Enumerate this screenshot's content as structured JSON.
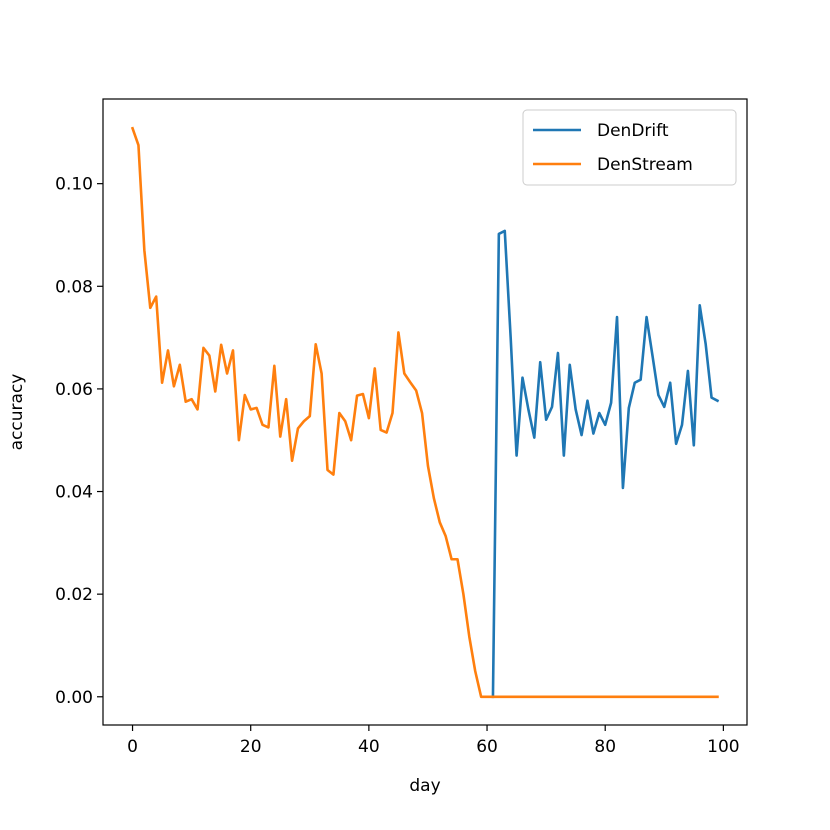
{
  "chart_data": {
    "type": "line",
    "title": "",
    "xlabel": "day",
    "ylabel": "accuracy",
    "xlim": [
      -5,
      104
    ],
    "ylim": [
      -0.0055,
      0.1165
    ],
    "xticks": [
      0,
      20,
      40,
      60,
      80,
      100
    ],
    "yticks": [
      0.0,
      0.02,
      0.04,
      0.06,
      0.08,
      0.1
    ],
    "ytick_labels": [
      "0.00",
      "0.02",
      "0.04",
      "0.06",
      "0.08",
      "0.10"
    ],
    "grid": false,
    "legend_position": "top-right",
    "series": [
      {
        "name": "DenDrift",
        "color": "#1f77b4",
        "x": [
          61,
          62,
          63,
          64,
          65,
          66,
          67,
          68,
          69,
          70,
          71,
          72,
          73,
          74,
          75,
          76,
          77,
          78,
          79,
          80,
          81,
          82,
          83,
          84,
          85,
          86,
          87,
          88,
          89,
          90,
          91,
          92,
          93,
          94,
          95,
          96,
          97,
          98,
          99
        ],
        "y": [
          0.0,
          0.0902,
          0.0908,
          0.07,
          0.047,
          0.0622,
          0.056,
          0.0505,
          0.0652,
          0.054,
          0.0565,
          0.067,
          0.047,
          0.0647,
          0.056,
          0.051,
          0.0577,
          0.0513,
          0.0553,
          0.053,
          0.0573,
          0.074,
          0.0407,
          0.0563,
          0.0612,
          0.0618,
          0.074,
          0.0665,
          0.0588,
          0.0565,
          0.0612,
          0.0493,
          0.053,
          0.0635,
          0.049,
          0.0763,
          0.0688,
          0.0583,
          0.0577
        ]
      },
      {
        "name": "DenStream",
        "color": "#ff7f0e",
        "x": [
          0,
          1,
          2,
          3,
          4,
          5,
          6,
          7,
          8,
          9,
          10,
          11,
          12,
          13,
          14,
          15,
          16,
          17,
          18,
          19,
          20,
          21,
          22,
          23,
          24,
          25,
          26,
          27,
          28,
          29,
          30,
          31,
          32,
          33,
          34,
          35,
          36,
          37,
          38,
          39,
          40,
          41,
          42,
          43,
          44,
          45,
          46,
          47,
          48,
          49,
          50,
          51,
          52,
          53,
          54,
          55,
          56,
          57,
          58,
          59,
          60,
          61,
          62,
          63,
          64,
          65,
          66,
          67,
          68,
          69,
          70,
          71,
          72,
          73,
          74,
          75,
          76,
          77,
          78,
          79,
          80,
          81,
          82,
          83,
          84,
          85,
          86,
          87,
          88,
          89,
          90,
          91,
          92,
          93,
          94,
          95,
          96,
          97,
          98,
          99
        ],
        "y": [
          0.1108,
          0.1075,
          0.087,
          0.0758,
          0.078,
          0.0612,
          0.0675,
          0.0605,
          0.0647,
          0.0575,
          0.058,
          0.056,
          0.068,
          0.0665,
          0.0595,
          0.0686,
          0.063,
          0.0675,
          0.05,
          0.0588,
          0.056,
          0.0563,
          0.053,
          0.0525,
          0.0645,
          0.0507,
          0.058,
          0.046,
          0.0523,
          0.0537,
          0.0547,
          0.0687,
          0.063,
          0.0442,
          0.0433,
          0.0553,
          0.0537,
          0.05,
          0.0587,
          0.059,
          0.0543,
          0.064,
          0.052,
          0.0515,
          0.0553,
          0.071,
          0.063,
          0.0613,
          0.0597,
          0.0553,
          0.045,
          0.0387,
          0.034,
          0.0313,
          0.0268,
          0.0268,
          0.02,
          0.0117,
          0.005,
          0.0,
          0.0,
          0.0,
          0.0,
          0.0,
          0.0,
          0.0,
          0.0,
          0.0,
          0.0,
          0.0,
          0.0,
          0.0,
          0.0,
          0.0,
          0.0,
          0.0,
          0.0,
          0.0,
          0.0,
          0.0,
          0.0,
          0.0,
          0.0,
          0.0,
          0.0,
          0.0,
          0.0,
          0.0,
          0.0,
          0.0,
          0.0,
          0.0,
          0.0,
          0.0,
          0.0,
          0.0,
          0.0,
          0.0,
          0.0,
          0.0
        ]
      }
    ]
  }
}
